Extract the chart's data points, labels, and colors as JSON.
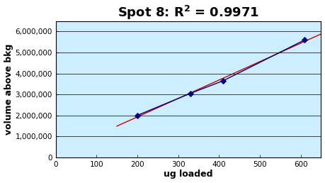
{
  "title": "Spot 8: R² = 0.9971",
  "xlabel": "ug loaded",
  "ylabel": "volume above bkg",
  "x_data": [
    200,
    330,
    410,
    610
  ],
  "y_data": [
    2000000,
    3050000,
    3650000,
    5600000
  ],
  "xlim": [
    0,
    650
  ],
  "ylim": [
    0,
    6500000
  ],
  "xticks": [
    0,
    100,
    200,
    300,
    400,
    500,
    600
  ],
  "yticks": [
    0,
    1000000,
    2000000,
    3000000,
    4000000,
    5000000,
    6000000
  ],
  "ytick_labels": [
    "0",
    "1,000,000",
    "2,000,000",
    "3,000,000",
    "4,000,000",
    "5,000,000",
    "6,000,000"
  ],
  "bg_color": "#cceeff",
  "outer_bg": "#ffffff",
  "line_color": "#000080",
  "trendline_color": "#cc0000",
  "marker_color": "#000080",
  "title_fontsize": 13,
  "axis_label_fontsize": 9,
  "tick_fontsize": 7.5
}
